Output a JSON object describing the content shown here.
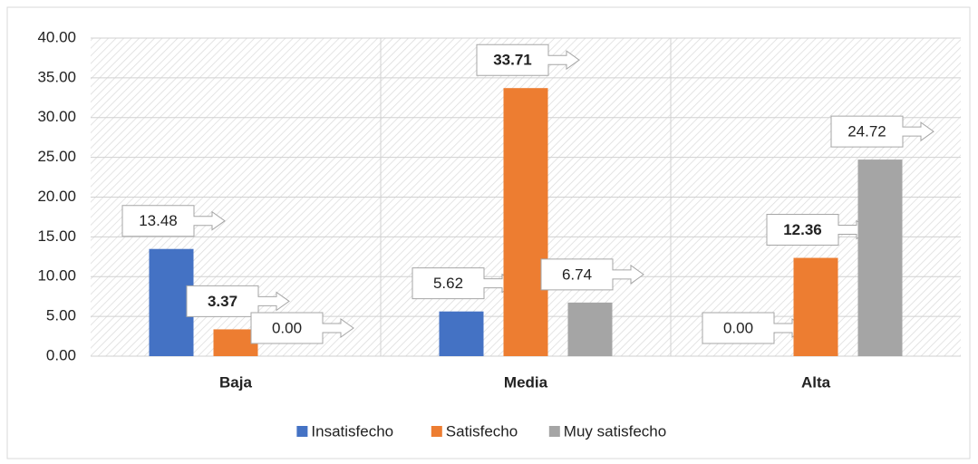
{
  "chart_data": {
    "type": "bar",
    "categories": [
      "Baja",
      "Media",
      "Alta"
    ],
    "series": [
      {
        "name": "Insatisfecho",
        "color": "#4472c4",
        "values": [
          13.48,
          5.62,
          0
        ],
        "value_labels": [
          "13.48",
          "5.62",
          "0.00"
        ]
      },
      {
        "name": "Satisfecho",
        "color": "#ed7d31",
        "values": [
          3.37,
          33.71,
          12.36
        ],
        "value_labels": [
          "3.37",
          "33.71",
          "12.36"
        ]
      },
      {
        "name": "Muy satisfecho",
        "color": "#a5a5a5",
        "values": [
          0,
          6.74,
          24.72
        ],
        "value_labels": [
          "0.00",
          "6.74",
          "24.72"
        ]
      }
    ],
    "ylim": [
      0,
      40
    ],
    "yticks": [
      {
        "value": 0,
        "label": "0.00"
      },
      {
        "value": 5,
        "label": "5.00"
      },
      {
        "value": 10,
        "label": "10.00"
      },
      {
        "value": 15,
        "label": "15.00"
      },
      {
        "value": 20,
        "label": "20.00"
      },
      {
        "value": 25,
        "label": "25.00"
      },
      {
        "value": 30,
        "label": "30.00"
      },
      {
        "value": 35,
        "label": "35.00"
      },
      {
        "value": 40,
        "label": "40.00"
      }
    ],
    "grid": true,
    "legend": "bottom"
  }
}
